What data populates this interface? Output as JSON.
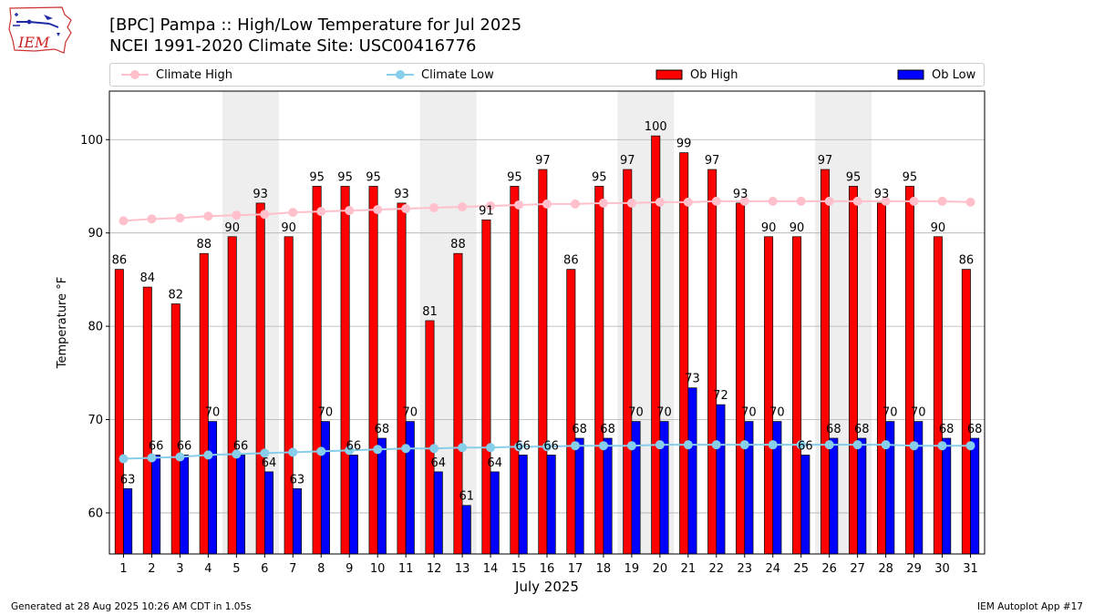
{
  "header": {
    "logo_text": "IEM",
    "title_line1": "[BPC] Pampa :: High/Low Temperature for Jul 2025",
    "title_line2": "NCEI 1991-2020 Climate Site: USC00416776"
  },
  "legend": [
    {
      "label": "Climate High",
      "color": "#ffc0cb",
      "kind": "line"
    },
    {
      "label": "Climate Low",
      "color": "#87ceeb",
      "kind": "line"
    },
    {
      "label": "Ob High",
      "color": "#ff0000",
      "kind": "bar"
    },
    {
      "label": "Ob Low",
      "color": "#0000ff",
      "kind": "bar"
    }
  ],
  "chart_data": {
    "type": "bar",
    "categories": [
      "1",
      "2",
      "3",
      "4",
      "5",
      "6",
      "7",
      "8",
      "9",
      "10",
      "11",
      "12",
      "13",
      "14",
      "15",
      "16",
      "17",
      "18",
      "19",
      "20",
      "21",
      "22",
      "23",
      "24",
      "25",
      "26",
      "27",
      "28",
      "29",
      "30",
      "31"
    ],
    "series": [
      {
        "name": "Ob High",
        "kind": "bar",
        "color": "#ff0000",
        "values": [
          86,
          84,
          82,
          88,
          90,
          93,
          90,
          95,
          95,
          95,
          93,
          81,
          88,
          91,
          95,
          97,
          86,
          95,
          97,
          100,
          99,
          97,
          93,
          90,
          90,
          97,
          95,
          93,
          95,
          90,
          86
        ],
        "display_values": [
          86.1,
          84.2,
          82.4,
          87.8,
          89.6,
          93.2,
          89.6,
          95.0,
          95.0,
          95.0,
          93.2,
          80.6,
          87.8,
          91.4,
          95.0,
          96.8,
          86.1,
          95.0,
          96.8,
          100.4,
          98.6,
          96.8,
          93.2,
          89.6,
          89.6,
          96.8,
          95.0,
          93.2,
          95.0,
          89.6,
          86.1
        ]
      },
      {
        "name": "Ob Low",
        "kind": "bar",
        "color": "#0000ff",
        "values": [
          63,
          66,
          66,
          70,
          66,
          64,
          63,
          70,
          66,
          68,
          70,
          64,
          61,
          64,
          66,
          66,
          68,
          68,
          70,
          70,
          73,
          72,
          70,
          70,
          66,
          68,
          68,
          70,
          70,
          68,
          68
        ],
        "display_values": [
          62.6,
          66.2,
          66.2,
          69.8,
          66.2,
          64.4,
          62.6,
          69.8,
          66.2,
          68.0,
          69.8,
          64.4,
          60.8,
          64.4,
          66.2,
          66.2,
          68.0,
          68.0,
          69.8,
          69.8,
          73.4,
          71.6,
          69.8,
          69.8,
          66.2,
          68.0,
          68.0,
          69.8,
          69.8,
          68.0,
          68.0
        ]
      },
      {
        "name": "Climate High",
        "kind": "line",
        "color": "#ffc0cb",
        "values": [
          91.3,
          91.5,
          91.6,
          91.8,
          91.9,
          92.0,
          92.2,
          92.3,
          92.4,
          92.5,
          92.6,
          92.7,
          92.8,
          92.9,
          93.0,
          93.1,
          93.1,
          93.2,
          93.2,
          93.3,
          93.3,
          93.4,
          93.4,
          93.4,
          93.4,
          93.4,
          93.4,
          93.4,
          93.4,
          93.4,
          93.3
        ]
      },
      {
        "name": "Climate Low",
        "kind": "line",
        "color": "#87ceeb",
        "values": [
          65.8,
          65.9,
          66.0,
          66.2,
          66.3,
          66.4,
          66.5,
          66.6,
          66.7,
          66.8,
          66.9,
          66.9,
          67.0,
          67.0,
          67.1,
          67.1,
          67.2,
          67.2,
          67.2,
          67.3,
          67.3,
          67.3,
          67.3,
          67.3,
          67.3,
          67.3,
          67.3,
          67.3,
          67.2,
          67.2,
          67.2
        ]
      }
    ],
    "shaded_weekends": [
      "5",
      "6",
      "12",
      "13",
      "19",
      "20",
      "26",
      "27"
    ],
    "ylabel": "Temperature $^\\circ$F",
    "xlabel": "July 2025",
    "ylim": [
      55.6,
      105.2
    ],
    "yticks": [
      60,
      70,
      80,
      90,
      100
    ],
    "grid": "horizontal",
    "legend_position": "top"
  },
  "footer": {
    "generated": "Generated at 28 Aug 2025 10:26 AM CDT in 1.05s",
    "app": "IEM Autoplot App #17"
  }
}
